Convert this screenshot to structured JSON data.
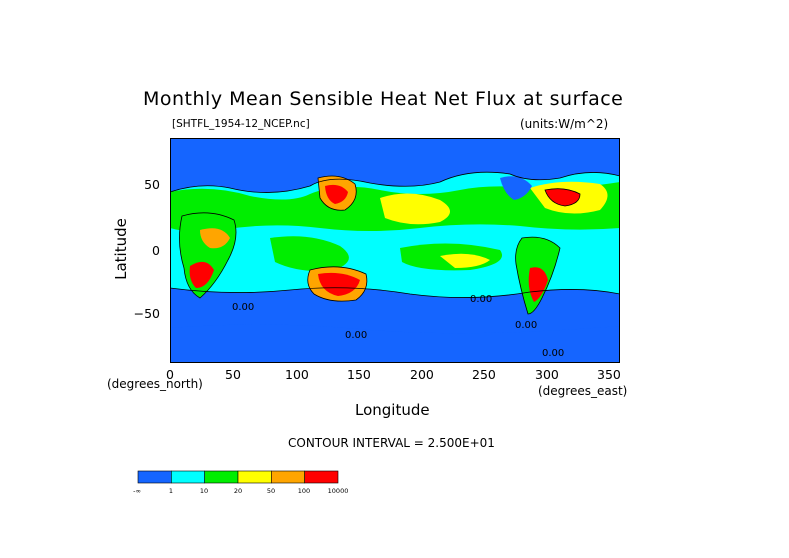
{
  "title": "Monthly Mean Sensible Heat Net Flux at surface",
  "file_label": "[SHTFL_1954-12_NCEP.nc]",
  "units_label": "(units:W/m^2)",
  "axes": {
    "ylabel": "Latitude",
    "xlabel": "Longitude",
    "y_ticks": [
      "50",
      "0",
      "−50"
    ],
    "x_ticks": [
      "0",
      "50",
      "100",
      "150",
      "200",
      "250",
      "300",
      "350"
    ],
    "y_note": "(degrees_north)",
    "x_note": "(degrees_east)"
  },
  "contour_interval": "CONTOUR INTERVAL = 2.500E+01",
  "contour_labels": [
    "0.00",
    "0.00",
    "0.00",
    "0.00",
    "0.00"
  ],
  "colorbar": {
    "colors": [
      "#1565ff",
      "#00ffff",
      "#00ee00",
      "#ffff00",
      "#ffa500",
      "#ff0000"
    ],
    "labels": [
      "-∞",
      "1",
      "10",
      "20",
      "50",
      "100",
      "10000"
    ]
  },
  "colors": {
    "map_edge": "#8b0000",
    "contour_line": "#000000"
  }
}
